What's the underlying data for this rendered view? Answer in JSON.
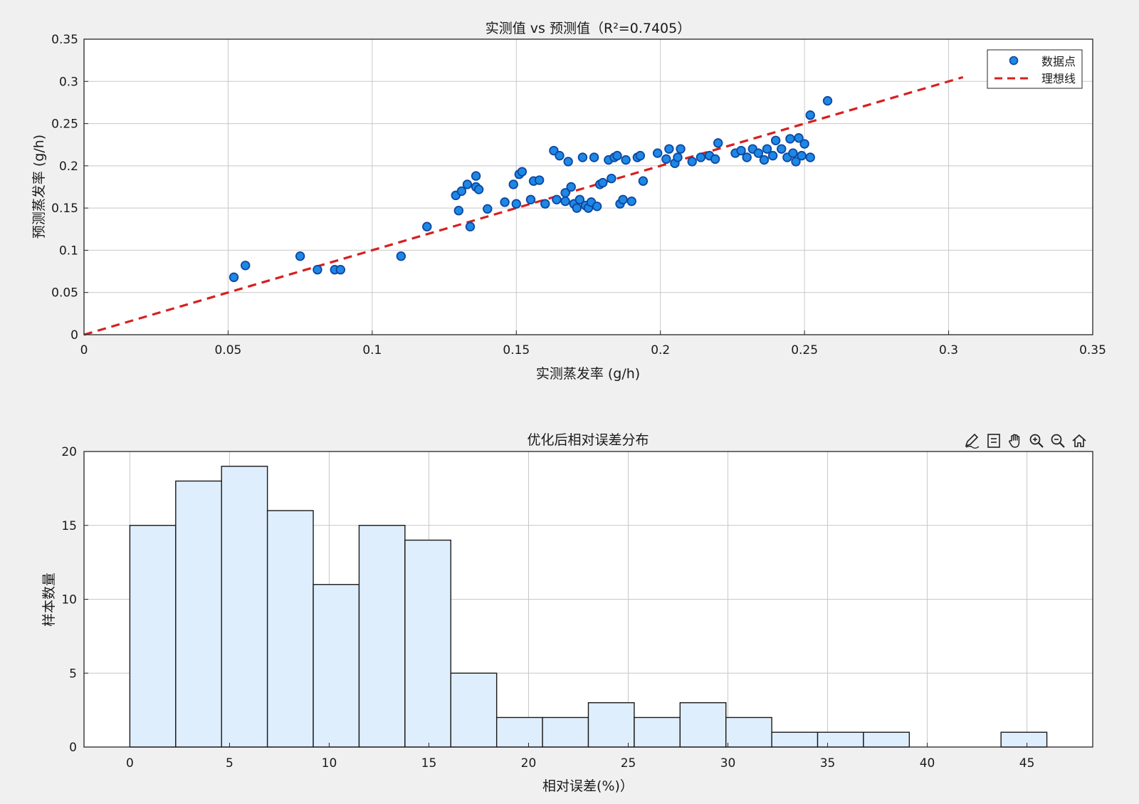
{
  "chart_data": [
    {
      "type": "scatter",
      "title": "实测值 vs 预测值（R²=0.7405）",
      "xlabel": "实测蒸发率 (g/h)",
      "ylabel": "预测蒸发率 (g/h)",
      "xlim": [
        0,
        0.35
      ],
      "ylim": [
        0,
        0.35
      ],
      "xticks": [
        "0",
        "0.05",
        "0.1",
        "0.15",
        "0.2",
        "0.25",
        "0.3",
        "0.35"
      ],
      "yticks": [
        "0",
        "0.05",
        "0.1",
        "0.15",
        "0.2",
        "0.25",
        "0.3",
        "0.35"
      ],
      "grid": true,
      "legend_position": "top-right",
      "series": [
        {
          "name": "数据点",
          "color": "#1565c0",
          "x": [
            0.052,
            0.056,
            0.075,
            0.081,
            0.087,
            0.089,
            0.11,
            0.119,
            0.129,
            0.13,
            0.131,
            0.133,
            0.134,
            0.136,
            0.136,
            0.137,
            0.14,
            0.146,
            0.149,
            0.15,
            0.151,
            0.152,
            0.155,
            0.156,
            0.158,
            0.16,
            0.163,
            0.164,
            0.165,
            0.167,
            0.167,
            0.168,
            0.169,
            0.17,
            0.171,
            0.172,
            0.173,
            0.174,
            0.175,
            0.176,
            0.177,
            0.178,
            0.179,
            0.18,
            0.182,
            0.183,
            0.184,
            0.185,
            0.186,
            0.187,
            0.188,
            0.19,
            0.192,
            0.193,
            0.194,
            0.199,
            0.202,
            0.203,
            0.205,
            0.206,
            0.207,
            0.211,
            0.214,
            0.217,
            0.219,
            0.22,
            0.226,
            0.228,
            0.23,
            0.232,
            0.234,
            0.236,
            0.237,
            0.239,
            0.24,
            0.242,
            0.244,
            0.245,
            0.246,
            0.247,
            0.248,
            0.249,
            0.25,
            0.252,
            0.252,
            0.258
          ],
          "y": [
            0.068,
            0.082,
            0.093,
            0.077,
            0.077,
            0.077,
            0.093,
            0.128,
            0.165,
            0.147,
            0.17,
            0.178,
            0.128,
            0.188,
            0.175,
            0.172,
            0.149,
            0.157,
            0.178,
            0.155,
            0.19,
            0.193,
            0.16,
            0.182,
            0.183,
            0.155,
            0.218,
            0.16,
            0.212,
            0.168,
            0.158,
            0.205,
            0.175,
            0.155,
            0.15,
            0.16,
            0.21,
            0.153,
            0.15,
            0.157,
            0.21,
            0.152,
            0.178,
            0.18,
            0.207,
            0.185,
            0.21,
            0.212,
            0.155,
            0.16,
            0.207,
            0.158,
            0.21,
            0.212,
            0.182,
            0.215,
            0.208,
            0.22,
            0.203,
            0.21,
            0.22,
            0.205,
            0.21,
            0.212,
            0.208,
            0.227,
            0.215,
            0.218,
            0.21,
            0.22,
            0.215,
            0.207,
            0.22,
            0.212,
            0.23,
            0.22,
            0.21,
            0.232,
            0.215,
            0.205,
            0.233,
            0.212,
            0.226,
            0.21,
            0.26,
            0.277
          ]
        },
        {
          "name": "理想线",
          "color": "#d62020",
          "x": [
            0,
            0.305
          ],
          "y": [
            0,
            0.305
          ]
        }
      ]
    },
    {
      "type": "bar",
      "title": "优化后相对误差分布",
      "xlabel": "相对误差(%)）",
      "ylabel": "样本数量",
      "xlim": [
        -2.3,
        48.3
      ],
      "ylim": [
        0,
        20
      ],
      "xticks": [
        "0",
        "5",
        "10",
        "15",
        "20",
        "25",
        "30",
        "35",
        "40",
        "45"
      ],
      "yticks": [
        "0",
        "5",
        "10",
        "15",
        "20"
      ],
      "grid": true,
      "bin_edges": [
        0,
        2.3,
        4.6,
        6.9,
        9.2,
        11.5,
        13.8,
        16.1,
        18.4,
        20.7,
        23.0,
        25.3,
        27.6,
        29.9,
        32.2,
        34.5,
        36.8,
        39.1,
        41.4,
        43.7,
        46.0
      ],
      "counts": [
        15,
        18,
        19,
        16,
        11,
        15,
        14,
        5,
        2,
        2,
        3,
        2,
        3,
        2,
        1,
        1,
        1,
        0,
        0,
        1
      ],
      "bar_color": "#dfeefc"
    }
  ],
  "toolbar": {
    "icons": [
      "brush-icon",
      "datatip-icon",
      "pan-hand-icon",
      "zoom-in-icon",
      "zoom-out-icon",
      "home-icon"
    ]
  }
}
